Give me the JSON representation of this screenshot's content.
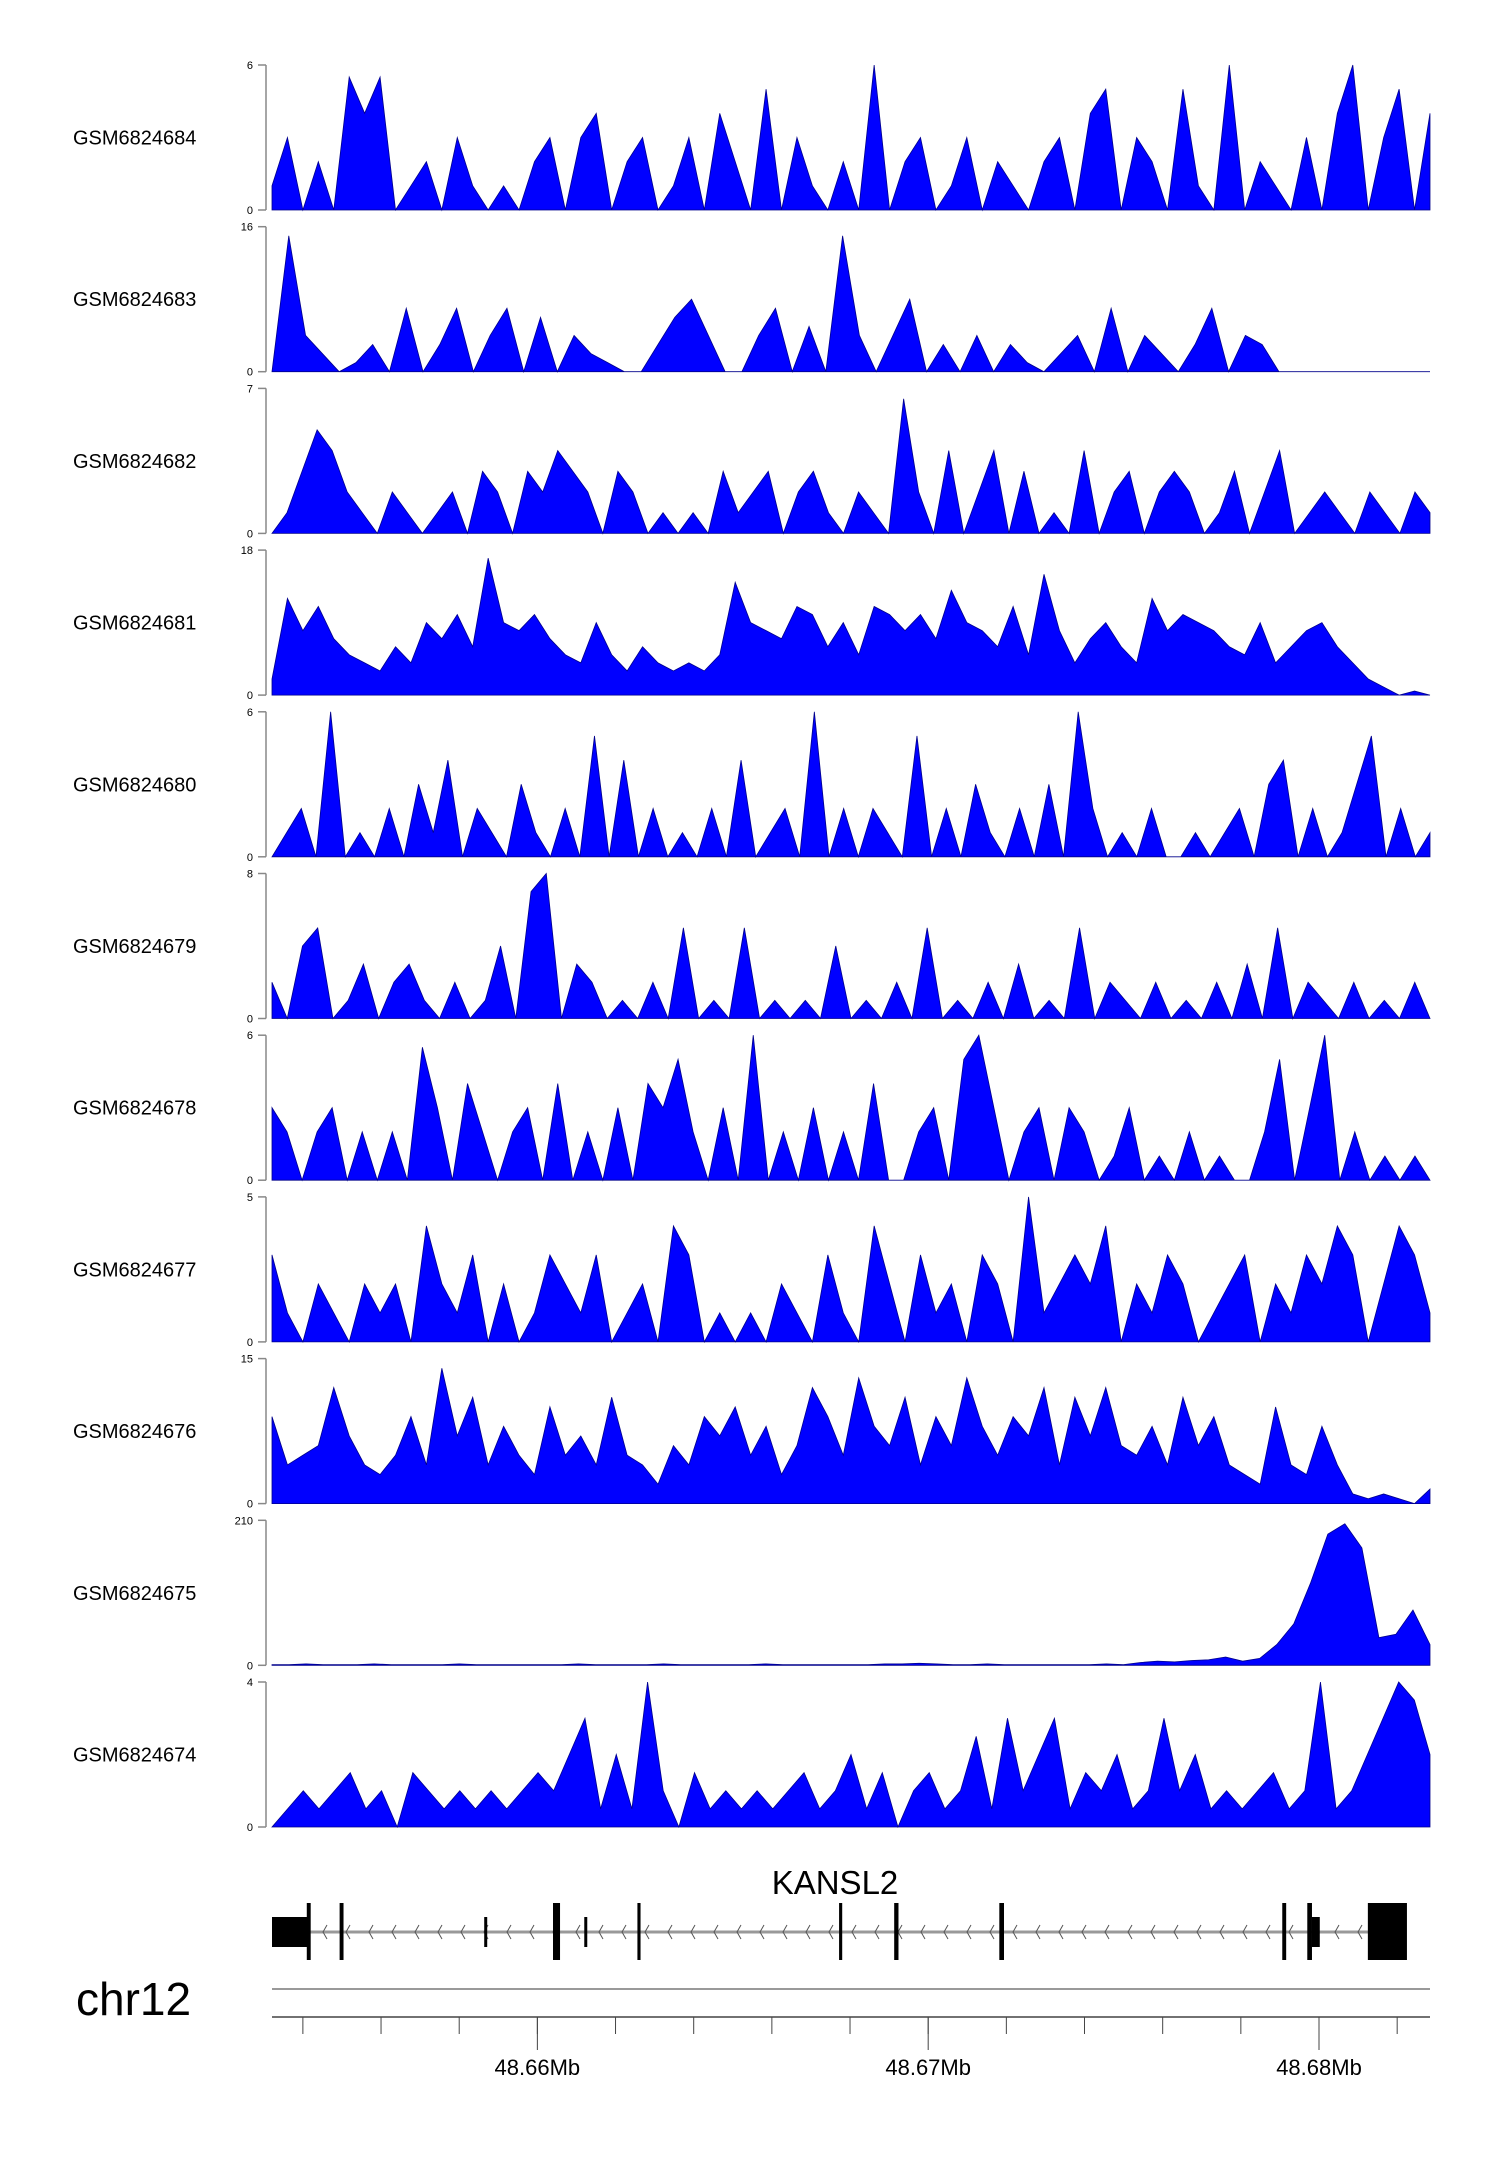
{
  "chart_data": {
    "type": "area",
    "xlabel": "",
    "chromosome": "chr12",
    "xlim_mb": [
      48.65321,
      48.68284
    ],
    "x_ticks_mb": [
      48.654,
      48.656,
      48.658,
      48.66,
      48.662,
      48.664,
      48.666,
      48.668,
      48.67,
      48.672,
      48.674,
      48.676,
      48.678,
      48.68,
      48.682
    ],
    "x_tick_labels": [
      {
        "mb": 48.66,
        "label": "48.66Mb"
      },
      {
        "mb": 48.67,
        "label": "48.67Mb"
      },
      {
        "mb": 48.68,
        "label": "48.68Mb"
      }
    ],
    "fill_color": "#0000ff",
    "tracks": [
      {
        "name": "GSM6824684",
        "ymax": 6,
        "ymin": 0,
        "values": [
          1,
          3,
          0,
          2,
          0,
          5.5,
          4,
          5.5,
          0,
          1,
          2,
          0,
          3,
          1,
          0,
          1,
          0,
          2,
          3,
          0,
          3,
          4,
          0,
          2,
          3,
          0,
          1,
          3,
          0,
          4,
          2,
          0,
          5,
          0,
          3,
          1,
          0,
          2,
          0,
          6,
          0,
          2,
          3,
          0,
          1,
          3,
          0,
          2,
          1,
          0,
          2,
          3,
          0,
          4,
          5,
          0,
          3,
          2,
          0,
          5,
          1,
          0,
          6,
          0,
          2,
          1,
          0,
          3,
          0,
          4,
          6,
          0,
          3,
          5,
          0,
          4
        ]
      },
      {
        "name": "GSM6824683",
        "ymax": 16,
        "ymin": 0,
        "values": [
          0,
          15,
          4,
          2,
          0,
          1,
          3,
          0,
          7,
          0,
          3,
          7,
          0,
          4,
          7,
          0,
          6,
          0,
          4,
          2,
          1,
          0,
          0,
          3,
          6,
          8,
          4,
          0,
          0,
          4,
          7,
          0,
          5,
          0,
          15,
          4,
          0,
          4,
          8,
          0,
          3,
          0,
          4,
          0,
          3,
          1,
          0,
          2,
          4,
          0,
          7,
          0,
          4,
          2,
          0,
          3,
          7,
          0,
          4,
          3,
          0,
          0,
          0,
          0,
          0,
          0,
          0,
          0,
          0,
          0
        ]
      },
      {
        "name": "GSM6824682",
        "ymax": 7,
        "ymin": 0,
        "values": [
          0,
          1,
          3,
          5,
          4,
          2,
          1,
          0,
          2,
          1,
          0,
          1,
          2,
          0,
          3,
          2,
          0,
          3,
          2,
          4,
          3,
          2,
          0,
          3,
          2,
          0,
          1,
          0,
          1,
          0,
          3,
          1,
          2,
          3,
          0,
          2,
          3,
          1,
          0,
          2,
          1,
          0,
          6.5,
          2,
          0,
          4,
          0,
          2,
          4,
          0,
          3,
          0,
          1,
          0,
          4,
          0,
          2,
          3,
          0,
          2,
          3,
          2,
          0,
          1,
          3,
          0,
          2,
          4,
          0,
          1,
          2,
          1,
          0,
          2,
          1,
          0,
          2,
          1
        ]
      },
      {
        "name": "GSM6824681",
        "ymax": 18,
        "ymin": 0,
        "values": [
          2,
          12,
          8,
          11,
          7,
          5,
          4,
          3,
          6,
          4,
          9,
          7,
          10,
          6,
          17,
          9,
          8,
          10,
          7,
          5,
          4,
          9,
          5,
          3,
          6,
          4,
          3,
          4,
          3,
          5,
          14,
          9,
          8,
          7,
          11,
          10,
          6,
          9,
          5,
          11,
          10,
          8,
          10,
          7,
          13,
          9,
          8,
          6,
          11,
          5,
          15,
          8,
          4,
          7,
          9,
          6,
          4,
          12,
          8,
          10,
          9,
          8,
          6,
          5,
          9,
          4,
          6,
          8,
          9,
          6,
          4,
          2,
          1,
          0,
          0.5,
          0
        ]
      },
      {
        "name": "GSM6824680",
        "ymax": 6,
        "ymin": 0,
        "values": [
          0,
          1,
          2,
          0,
          6,
          0,
          1,
          0,
          2,
          0,
          3,
          1,
          4,
          0,
          2,
          1,
          0,
          3,
          1,
          0,
          2,
          0,
          5,
          0,
          4,
          0,
          2,
          0,
          1,
          0,
          2,
          0,
          4,
          0,
          1,
          2,
          0,
          6,
          0,
          2,
          0,
          2,
          1,
          0,
          5,
          0,
          2,
          0,
          3,
          1,
          0,
          2,
          0,
          3,
          0,
          6,
          2,
          0,
          1,
          0,
          2,
          0,
          0,
          1,
          0,
          1,
          2,
          0,
          3,
          4,
          0,
          2,
          0,
          1,
          3,
          5,
          0,
          2,
          0,
          1
        ]
      },
      {
        "name": "GSM6824679",
        "ymax": 8,
        "ymin": 0,
        "values": [
          2,
          0,
          4,
          5,
          0,
          1,
          3,
          0,
          2,
          3,
          1,
          0,
          2,
          0,
          1,
          4,
          0,
          7,
          8,
          0,
          3,
          2,
          0,
          1,
          0,
          2,
          0,
          5,
          0,
          1,
          0,
          5,
          0,
          1,
          0,
          1,
          0,
          4,
          0,
          1,
          0,
          2,
          0,
          5,
          0,
          1,
          0,
          2,
          0,
          3,
          0,
          1,
          0,
          5,
          0,
          2,
          1,
          0,
          2,
          0,
          1,
          0,
          2,
          0,
          3,
          0,
          5,
          0,
          2,
          1,
          0,
          2,
          0,
          1,
          0,
          2,
          0
        ]
      },
      {
        "name": "GSM6824678",
        "ymax": 6,
        "ymin": 0,
        "values": [
          3,
          2,
          0,
          2,
          3,
          0,
          2,
          0,
          2,
          0,
          5.5,
          3,
          0,
          4,
          2,
          0,
          2,
          3,
          0,
          4,
          0,
          2,
          0,
          3,
          0,
          4,
          3,
          5,
          2,
          0,
          3,
          0,
          6,
          0,
          2,
          0,
          3,
          0,
          2,
          0,
          4,
          0,
          0,
          2,
          3,
          0,
          5,
          6,
          3,
          0,
          2,
          3,
          0,
          3,
          2,
          0,
          1,
          3,
          0,
          1,
          0,
          2,
          0,
          1,
          0,
          0,
          2,
          5,
          0,
          3,
          6,
          0,
          2,
          0,
          1,
          0,
          1,
          0
        ]
      },
      {
        "name": "GSM6824677",
        "ymax": 5,
        "ymin": 0,
        "values": [
          3,
          1,
          0,
          2,
          1,
          0,
          2,
          1,
          2,
          0,
          4,
          2,
          1,
          3,
          0,
          2,
          0,
          1,
          3,
          2,
          1,
          3,
          0,
          1,
          2,
          0,
          4,
          3,
          0,
          1,
          0,
          1,
          0,
          2,
          1,
          0,
          3,
          1,
          0,
          4,
          2,
          0,
          3,
          1,
          2,
          0,
          3,
          2,
          0,
          5,
          1,
          2,
          3,
          2,
          4,
          0,
          2,
          1,
          3,
          2,
          0,
          1,
          2,
          3,
          0,
          2,
          1,
          3,
          2,
          4,
          3,
          0,
          2,
          4,
          3,
          1
        ]
      },
      {
        "name": "GSM6824676",
        "ymax": 15,
        "ymin": 0,
        "values": [
          9,
          4,
          5,
          6,
          12,
          7,
          4,
          3,
          5,
          9,
          4,
          14,
          7,
          11,
          4,
          8,
          5,
          3,
          10,
          5,
          7,
          4,
          11,
          5,
          4,
          2,
          6,
          4,
          9,
          7,
          10,
          5,
          8,
          3,
          6,
          12,
          9,
          5,
          13,
          8,
          6,
          11,
          4,
          9,
          6,
          13,
          8,
          5,
          9,
          7,
          12,
          4,
          11,
          7,
          12,
          6,
          5,
          8,
          4,
          11,
          6,
          9,
          4,
          3,
          2,
          10,
          4,
          3,
          8,
          4,
          1,
          0.5,
          1,
          0.5,
          0,
          1.5
        ]
      },
      {
        "name": "GSM6824675",
        "ymax": 210,
        "ymin": 0,
        "values": [
          1,
          1,
          2,
          1,
          1,
          1,
          2,
          1,
          1,
          1,
          1,
          2,
          1,
          1,
          1,
          1,
          1,
          1,
          2,
          1,
          1,
          1,
          1,
          2,
          1,
          1,
          1,
          1,
          1,
          2,
          1,
          1,
          1,
          1,
          1,
          1,
          2,
          2,
          3,
          2,
          1,
          1,
          2,
          1,
          1,
          1,
          1,
          1,
          1,
          2,
          1,
          4,
          6,
          5,
          7,
          8,
          12,
          6,
          10,
          30,
          60,
          120,
          190,
          205,
          170,
          40,
          45,
          80,
          30
        ]
      },
      {
        "name": "GSM6824674",
        "ymax": 4,
        "ymin": 0,
        "values": [
          0,
          0.5,
          1,
          0.5,
          1,
          1.5,
          0.5,
          1,
          0,
          1.5,
          1,
          0.5,
          1,
          0.5,
          1,
          0.5,
          1,
          1.5,
          1,
          2,
          3,
          0.5,
          2,
          0.5,
          4,
          1,
          0,
          1.5,
          0.5,
          1,
          0.5,
          1,
          0.5,
          1,
          1.5,
          0.5,
          1,
          2,
          0.5,
          1.5,
          0,
          1,
          1.5,
          0.5,
          1,
          2.5,
          0.5,
          3,
          1,
          2,
          3,
          0.5,
          1.5,
          1,
          2,
          0.5,
          1,
          3,
          1,
          2,
          0.5,
          1,
          0.5,
          1,
          1.5,
          0.5,
          1,
          4,
          0.5,
          1,
          2,
          3,
          4,
          3.5,
          2
        ]
      }
    ]
  },
  "gene": {
    "name": "KANSL2",
    "strand": "-",
    "start_mb": 48.65321,
    "end_mb": 48.68225,
    "exons": [
      {
        "start": 48.65321,
        "end": 48.65413,
        "kind": "utr"
      },
      {
        "start": 48.6541,
        "end": 48.6542,
        "kind": "cds"
      },
      {
        "start": 48.65494,
        "end": 48.65504,
        "kind": "cds"
      },
      {
        "start": 48.65864,
        "end": 48.65869,
        "kind": "utr"
      },
      {
        "start": 48.6604,
        "end": 48.66058,
        "kind": "cds"
      },
      {
        "start": 48.6612,
        "end": 48.66125,
        "kind": "utr"
      },
      {
        "start": 48.66256,
        "end": 48.66264,
        "kind": "cds"
      },
      {
        "start": 48.66772,
        "end": 48.6678,
        "kind": "cds"
      },
      {
        "start": 48.66913,
        "end": 48.66924,
        "kind": "cds"
      },
      {
        "start": 48.67182,
        "end": 48.67194,
        "kind": "cds"
      },
      {
        "start": 48.67906,
        "end": 48.67916,
        "kind": "cds"
      },
      {
        "start": 48.6797,
        "end": 48.67982,
        "kind": "cds"
      },
      {
        "start": 48.67982,
        "end": 48.68002,
        "kind": "utr"
      },
      {
        "start": 48.68125,
        "end": 48.68225,
        "kind": "cds"
      }
    ]
  }
}
